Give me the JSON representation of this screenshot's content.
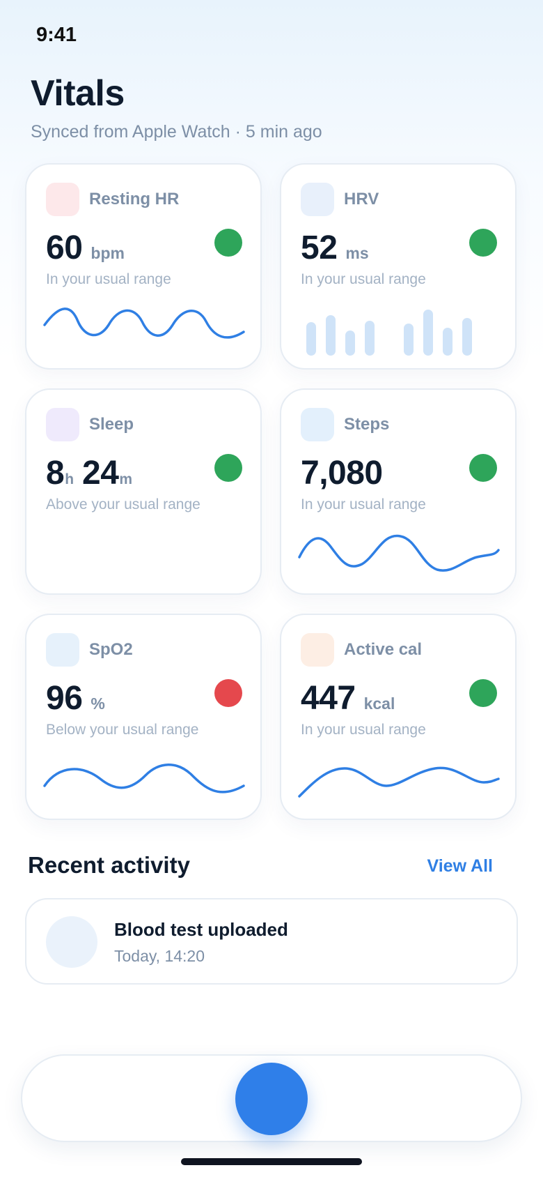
{
  "status_bar": {
    "time": "9:41"
  },
  "header": {
    "title": "Vitals",
    "subtitle": "Synced from Apple Watch · 5 min ago"
  },
  "cards": [
    {
      "label": "Resting HR",
      "value": "60",
      "unit": "bpm",
      "note": "In your usual range",
      "status": "normal",
      "status_color": "#2ea55a",
      "tile_color": "#fde8ea",
      "chart": "line"
    },
    {
      "label": "HRV",
      "value": "52",
      "unit": "ms",
      "note": "In your usual range",
      "status": "normal",
      "status_color": "#2ea55a",
      "tile_color": "#e8f0fb",
      "chart": "bars"
    },
    {
      "label": "Sleep",
      "value_hours": "8",
      "unit_hours": "h",
      "value_minutes": "24",
      "unit_minutes": "m",
      "note": "Above your usual range",
      "status": "normal",
      "status_color": "#2ea55a",
      "tile_color": "#efeafc",
      "chart": "none"
    },
    {
      "label": "Steps",
      "value": "7,080",
      "unit": "",
      "note": "In your usual range",
      "status": "normal",
      "status_color": "#2ea55a",
      "tile_color": "#e3f0fc",
      "chart": "line"
    },
    {
      "label": "SpO2",
      "value": "96",
      "unit": "%",
      "note": "Below your usual range",
      "status": "alert",
      "status_color": "#e5484d",
      "tile_color": "#e6f1fb",
      "chart": "line"
    },
    {
      "label": "Active cal",
      "value": "447",
      "unit": "kcal",
      "note": "In your usual range",
      "status": "normal",
      "status_color": "#2ea55a",
      "tile_color": "#fdeee4",
      "chart": "line"
    }
  ],
  "recent_activity": {
    "title": "Recent activity",
    "view_all_label": "View All",
    "items": [
      {
        "title": "Blood test uploaded",
        "time": "Today, 14:20"
      }
    ]
  },
  "colors": {
    "accent": "#2f7fe4",
    "sparkline": "#2f7fe4",
    "hrv_bar": "#cfe3f8"
  }
}
